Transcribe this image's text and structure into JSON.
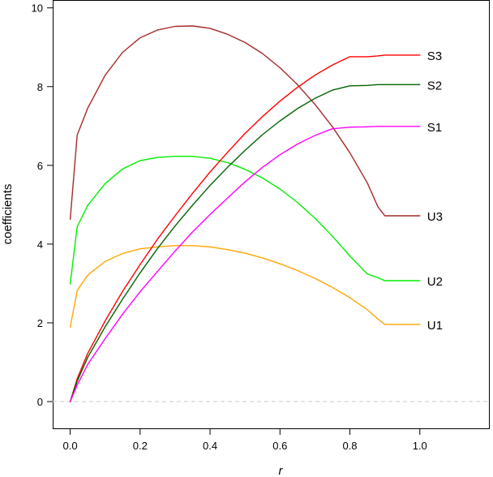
{
  "chart_data": {
    "type": "line",
    "title": "",
    "xlabel": "r",
    "ylabel": "coefficients",
    "xlim": [
      -0.05,
      1.2
    ],
    "ylim": [
      -0.7,
      10.2
    ],
    "xticks": [
      0.0,
      0.2,
      0.4,
      0.6,
      0.8,
      1.0
    ],
    "xtick_labels": [
      "0.0",
      "0.2",
      "0.4",
      "0.6",
      "0.8",
      "1.0"
    ],
    "yticks": [
      0,
      2,
      4,
      6,
      8,
      10
    ],
    "ytick_labels": [
      "0",
      "2",
      "4",
      "6",
      "8",
      "10"
    ],
    "grid": false,
    "reference_line": {
      "y": 0,
      "color": "#d3d3d3",
      "style": "dashed"
    },
    "series": [
      {
        "name": "U3",
        "color": "#a52a2a",
        "x": [
          0.0,
          0.02,
          0.05,
          0.1,
          0.15,
          0.2,
          0.25,
          0.3,
          0.35,
          0.4,
          0.45,
          0.5,
          0.55,
          0.6,
          0.65,
          0.7,
          0.75,
          0.8,
          0.85,
          0.88,
          0.9,
          1.0
        ],
        "y": [
          4.63,
          6.77,
          7.45,
          8.29,
          8.87,
          9.24,
          9.44,
          9.53,
          9.54,
          9.48,
          9.33,
          9.12,
          8.84,
          8.48,
          8.05,
          7.55,
          6.98,
          6.32,
          5.55,
          4.95,
          4.72,
          4.72
        ]
      },
      {
        "name": "U2",
        "color": "#00ee00",
        "x": [
          0.0,
          0.02,
          0.05,
          0.1,
          0.15,
          0.2,
          0.25,
          0.3,
          0.35,
          0.4,
          0.45,
          0.5,
          0.55,
          0.6,
          0.65,
          0.7,
          0.75,
          0.8,
          0.85,
          0.88,
          0.9,
          1.0
        ],
        "y": [
          2.99,
          4.44,
          4.98,
          5.54,
          5.91,
          6.12,
          6.2,
          6.23,
          6.23,
          6.18,
          6.07,
          5.9,
          5.68,
          5.4,
          5.06,
          4.66,
          4.2,
          3.7,
          3.24,
          3.15,
          3.07,
          3.07
        ]
      },
      {
        "name": "U1",
        "color": "#ffa500",
        "x": [
          0.0,
          0.02,
          0.05,
          0.1,
          0.15,
          0.2,
          0.25,
          0.3,
          0.35,
          0.4,
          0.45,
          0.5,
          0.55,
          0.6,
          0.65,
          0.7,
          0.75,
          0.8,
          0.85,
          0.88,
          0.9,
          1.0
        ],
        "y": [
          1.89,
          2.82,
          3.21,
          3.56,
          3.76,
          3.88,
          3.93,
          3.96,
          3.96,
          3.93,
          3.86,
          3.77,
          3.65,
          3.5,
          3.33,
          3.13,
          2.9,
          2.64,
          2.33,
          2.1,
          1.96,
          1.96
        ]
      },
      {
        "name": "S3",
        "color": "#ff0000",
        "x": [
          0.0,
          0.02,
          0.05,
          0.1,
          0.15,
          0.2,
          0.25,
          0.3,
          0.35,
          0.4,
          0.45,
          0.5,
          0.55,
          0.6,
          0.65,
          0.7,
          0.75,
          0.8,
          0.85,
          0.88,
          0.9,
          1.0
        ],
        "y": [
          0.0,
          0.58,
          1.22,
          2.05,
          2.8,
          3.48,
          4.13,
          4.72,
          5.29,
          5.83,
          6.33,
          6.81,
          7.24,
          7.63,
          7.98,
          8.29,
          8.55,
          8.76,
          8.76,
          8.78,
          8.8,
          8.8
        ]
      },
      {
        "name": "S2",
        "color": "#006400",
        "x": [
          0.0,
          0.02,
          0.05,
          0.1,
          0.15,
          0.2,
          0.25,
          0.3,
          0.35,
          0.4,
          0.45,
          0.5,
          0.55,
          0.6,
          0.65,
          0.7,
          0.75,
          0.8,
          0.85,
          0.88,
          0.9,
          1.0
        ],
        "y": [
          0.0,
          0.52,
          1.12,
          1.9,
          2.6,
          3.27,
          3.89,
          4.46,
          4.99,
          5.49,
          5.95,
          6.38,
          6.78,
          7.13,
          7.44,
          7.7,
          7.91,
          8.02,
          8.03,
          8.05,
          8.05,
          8.05
        ]
      },
      {
        "name": "S1",
        "color": "#ff00ff",
        "x": [
          0.0,
          0.02,
          0.05,
          0.1,
          0.15,
          0.2,
          0.25,
          0.3,
          0.35,
          0.4,
          0.45,
          0.5,
          0.55,
          0.6,
          0.65,
          0.7,
          0.75,
          0.8,
          0.85,
          0.88,
          0.9,
          1.0
        ],
        "y": [
          0.0,
          0.42,
          0.94,
          1.6,
          2.22,
          2.79,
          3.31,
          3.82,
          4.31,
          4.75,
          5.17,
          5.58,
          5.95,
          6.27,
          6.54,
          6.76,
          6.93,
          6.97,
          6.98,
          6.99,
          6.99,
          6.99
        ]
      }
    ]
  }
}
